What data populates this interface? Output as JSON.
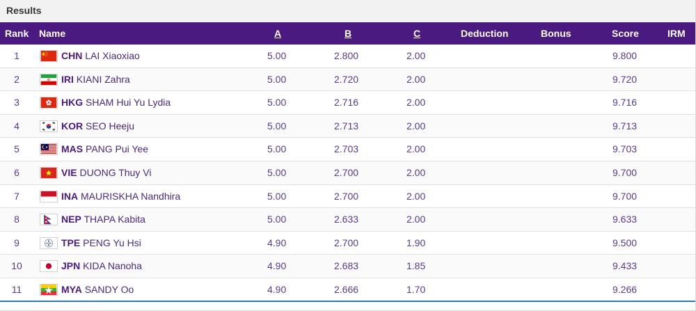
{
  "title": "Results",
  "columns": {
    "rank": "Rank",
    "name": "Name",
    "a": "A",
    "b": "B",
    "c": "C",
    "deduction": "Deduction",
    "bonus": "Bonus",
    "score": "Score",
    "irm": "IRM"
  },
  "rows": [
    {
      "rank": "1",
      "noc": "CHN",
      "athlete": "LAI Xiaoxiao",
      "a": "5.00",
      "b": "2.800",
      "c": "2.00",
      "score": "9.800",
      "flag": "china-flag-icon"
    },
    {
      "rank": "2",
      "noc": "IRI",
      "athlete": "KIANI Zahra",
      "a": "5.00",
      "b": "2.720",
      "c": "2.00",
      "score": "9.720",
      "flag": "iran-flag-icon"
    },
    {
      "rank": "3",
      "noc": "HKG",
      "athlete": "SHAM Hui Yu Lydia",
      "a": "5.00",
      "b": "2.716",
      "c": "2.00",
      "score": "9.716",
      "flag": "hong-kong-flag-icon"
    },
    {
      "rank": "4",
      "noc": "KOR",
      "athlete": "SEO Heeju",
      "a": "5.00",
      "b": "2.713",
      "c": "2.00",
      "score": "9.713",
      "flag": "korea-flag-icon"
    },
    {
      "rank": "5",
      "noc": "MAS",
      "athlete": "PANG Pui Yee",
      "a": "5.00",
      "b": "2.703",
      "c": "2.00",
      "score": "9.703",
      "flag": "malaysia-flag-icon"
    },
    {
      "rank": "6",
      "noc": "VIE",
      "athlete": "DUONG Thuy Vi",
      "a": "5.00",
      "b": "2.700",
      "c": "2.00",
      "score": "9.700",
      "flag": "vietnam-flag-icon"
    },
    {
      "rank": "7",
      "noc": "INA",
      "athlete": "MAURISKHA Nandhira",
      "a": "5.00",
      "b": "2.700",
      "c": "2.00",
      "score": "9.700",
      "flag": "indonesia-flag-icon"
    },
    {
      "rank": "8",
      "noc": "NEP",
      "athlete": "THAPA Kabita",
      "a": "5.00",
      "b": "2.633",
      "c": "2.00",
      "score": "9.633",
      "flag": "nepal-flag-icon"
    },
    {
      "rank": "9",
      "noc": "TPE",
      "athlete": "PENG Yu Hsi",
      "a": "4.90",
      "b": "2.700",
      "c": "1.90",
      "score": "9.500",
      "flag": "chinese-taipei-flag-icon"
    },
    {
      "rank": "10",
      "noc": "JPN",
      "athlete": "KIDA Nanoha",
      "a": "4.90",
      "b": "2.683",
      "c": "1.85",
      "score": "9.433",
      "flag": "japan-flag-icon"
    },
    {
      "rank": "11",
      "noc": "MYA",
      "athlete": "SANDY Oo",
      "a": "4.90",
      "b": "2.666",
      "c": "1.70",
      "score": "9.266",
      "flag": "myanmar-flag-icon"
    }
  ],
  "colors": {
    "header_bg": "#4b1a80",
    "text_purple": "#4a2a78",
    "bottom_rule": "#2c7bb6"
  }
}
